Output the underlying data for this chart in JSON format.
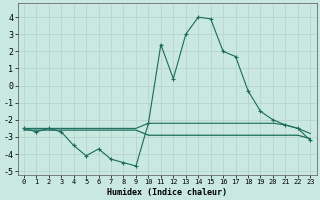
{
  "xlabel": "Humidex (Indice chaleur)",
  "xlim": [
    -0.5,
    23.5
  ],
  "ylim": [
    -5.2,
    4.8
  ],
  "xticks": [
    0,
    1,
    2,
    3,
    4,
    5,
    6,
    7,
    8,
    9,
    10,
    11,
    12,
    13,
    14,
    15,
    16,
    17,
    18,
    19,
    20,
    21,
    22,
    23
  ],
  "yticks": [
    -5,
    -4,
    -3,
    -2,
    -1,
    0,
    1,
    2,
    3,
    4
  ],
  "background_color": "#c8e8e0",
  "line_color": "#1a6b5a",
  "line1_x": [
    0,
    1,
    2,
    3,
    4,
    5,
    6,
    7,
    8,
    9,
    10,
    11,
    12,
    13,
    14,
    15,
    16,
    17,
    18,
    19,
    20,
    21,
    22,
    23
  ],
  "line1_y": [
    -2.5,
    -2.7,
    -2.5,
    -2.7,
    -3.5,
    -4.1,
    -3.7,
    -4.3,
    -4.5,
    -4.7,
    -2.2,
    2.4,
    0.4,
    3.0,
    4.0,
    3.9,
    2.0,
    1.7,
    -0.3,
    -1.5,
    -2.0,
    -2.3,
    -2.5,
    -3.2
  ],
  "line2_x": [
    0,
    1,
    2,
    3,
    4,
    5,
    6,
    7,
    8,
    9,
    10,
    11,
    12,
    13,
    14,
    15,
    16,
    17,
    18,
    19,
    20,
    21,
    22,
    23
  ],
  "line2_y": [
    -2.5,
    -2.5,
    -2.5,
    -2.5,
    -2.5,
    -2.5,
    -2.5,
    -2.5,
    -2.5,
    -2.5,
    -2.2,
    -2.2,
    -2.2,
    -2.2,
    -2.2,
    -2.2,
    -2.2,
    -2.2,
    -2.2,
    -2.2,
    -2.2,
    -2.3,
    -2.5,
    -2.8
  ],
  "line3_x": [
    0,
    1,
    2,
    3,
    4,
    5,
    6,
    7,
    8,
    9,
    10,
    11,
    12,
    13,
    14,
    15,
    16,
    17,
    18,
    19,
    20,
    21,
    22,
    23
  ],
  "line3_y": [
    -2.6,
    -2.6,
    -2.6,
    -2.6,
    -2.6,
    -2.6,
    -2.6,
    -2.6,
    -2.6,
    -2.6,
    -2.9,
    -2.9,
    -2.9,
    -2.9,
    -2.9,
    -2.9,
    -2.9,
    -2.9,
    -2.9,
    -2.9,
    -2.9,
    -2.9,
    -2.9,
    -3.1
  ]
}
